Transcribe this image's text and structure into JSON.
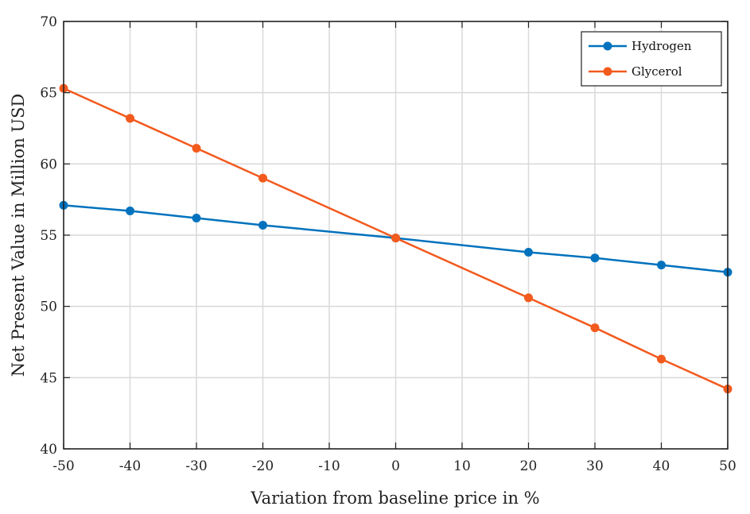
{
  "chart_data": {
    "type": "line",
    "title": "",
    "xlabel": "Variation from baseline price in %",
    "ylabel": "Net Present Value in Million USD",
    "xlim": [
      -50,
      50
    ],
    "ylim": [
      40,
      70
    ],
    "xticks": [
      -50,
      -40,
      -30,
      -20,
      -10,
      0,
      10,
      20,
      30,
      40,
      50
    ],
    "yticks": [
      40,
      45,
      50,
      55,
      60,
      65,
      70
    ],
    "x": [
      -50,
      -40,
      -30,
      -20,
      0,
      20,
      30,
      40,
      50
    ],
    "grid": true,
    "legend_position": "top-right",
    "series": [
      {
        "name": "Hydrogen",
        "color": "#0072bd",
        "values": [
          57.1,
          56.7,
          56.2,
          55.7,
          54.8,
          53.8,
          53.4,
          52.9,
          52.4
        ]
      },
      {
        "name": "Glycerol",
        "color": "#f25a1e",
        "values": [
          65.3,
          63.2,
          61.1,
          59.0,
          54.8,
          50.6,
          48.5,
          46.3,
          44.2
        ]
      }
    ]
  }
}
